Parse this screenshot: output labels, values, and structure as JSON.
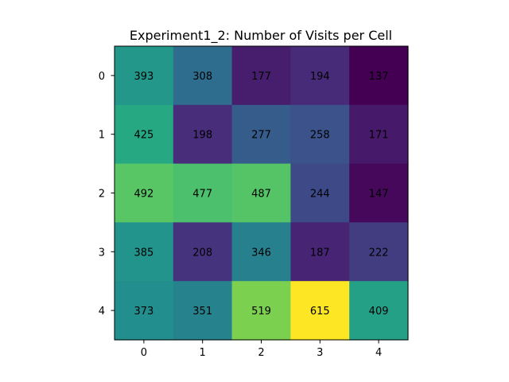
{
  "chart_data": {
    "type": "heatmap",
    "title": "Experiment1_2: Number of Visits per Cell",
    "xlabel": "",
    "ylabel": "",
    "x_ticks": [
      "0",
      "1",
      "2",
      "3",
      "4"
    ],
    "y_ticks": [
      "0",
      "1",
      "2",
      "3",
      "4"
    ],
    "values": [
      [
        393,
        308,
        177,
        194,
        137
      ],
      [
        425,
        198,
        277,
        258,
        171
      ],
      [
        492,
        477,
        487,
        244,
        147
      ],
      [
        385,
        208,
        346,
        187,
        222
      ],
      [
        373,
        351,
        519,
        615,
        409
      ]
    ],
    "colormap": "viridis",
    "color_range": [
      137,
      615
    ],
    "grid": false,
    "legend": "none"
  }
}
